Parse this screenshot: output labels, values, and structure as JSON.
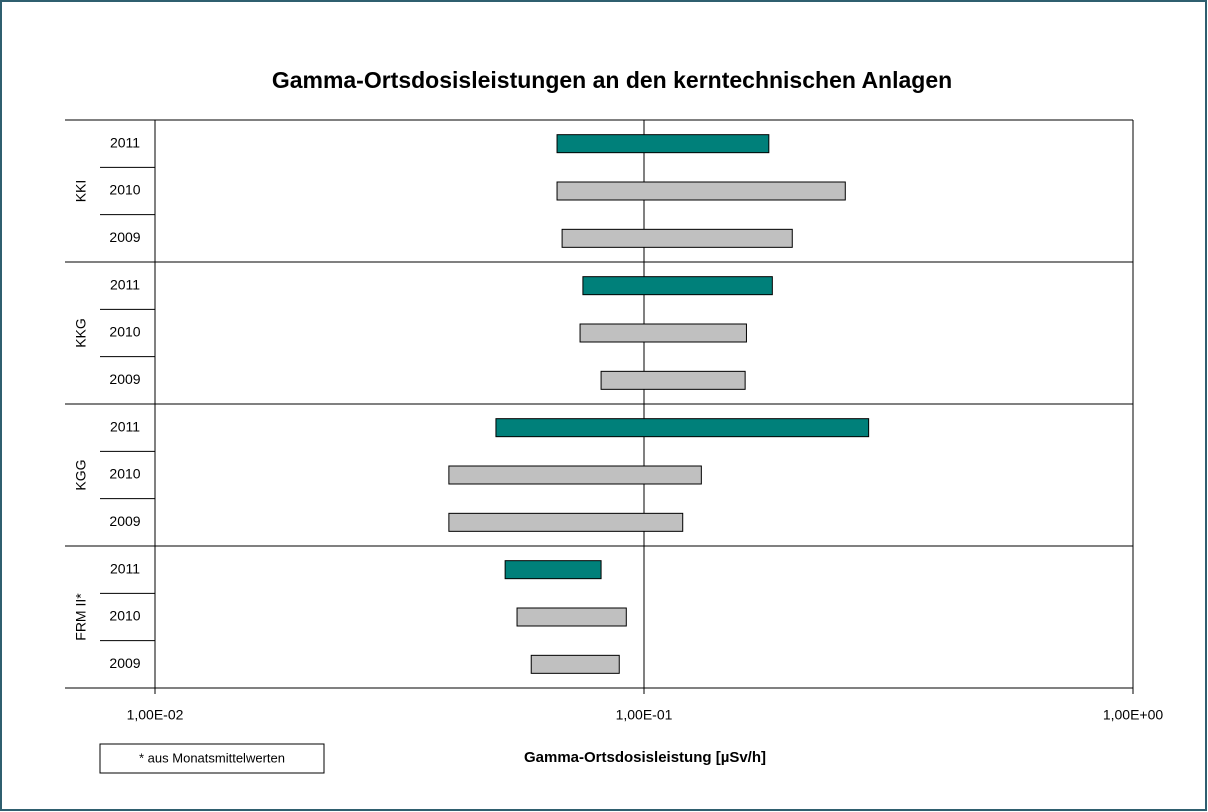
{
  "chart_data": {
    "type": "floating-bar",
    "title": "Gamma-Ortsdosisleistungen an den kerntechnischen Anlagen",
    "x_label": "Gamma-Ortsdosisleistung [µSv/h]",
    "note": "* aus Monatsmittelwerten",
    "log_x": true,
    "xlim": [
      0.01,
      1
    ],
    "xticks": [
      {
        "value": 0.01,
        "label": "1,00E-02"
      },
      {
        "value": 0.1,
        "label": "1,00E-01"
      },
      {
        "value": 1,
        "label": "1,00E+00"
      }
    ],
    "grid": true,
    "groups": [
      {
        "name": "KKI",
        "items": [
          {
            "label": "2011",
            "color": "#00807a",
            "values": [
              0.0664,
              0.18
            ]
          },
          {
            "label": "2010",
            "color": "#c0c0c0",
            "values": [
              0.0664,
              0.258
            ]
          },
          {
            "label": "2009",
            "color": "#c0c0c0",
            "values": [
              0.068,
              0.201
            ]
          }
        ]
      },
      {
        "name": "KKG",
        "items": [
          {
            "label": "2011",
            "color": "#00807a",
            "values": [
              0.075,
              0.183
            ]
          },
          {
            "label": "2010",
            "color": "#c0c0c0",
            "values": [
              0.074,
              0.162
            ]
          },
          {
            "label": "2009",
            "color": "#c0c0c0",
            "values": [
              0.0817,
              0.161
            ]
          }
        ]
      },
      {
        "name": "KGG",
        "items": [
          {
            "label": "2011",
            "color": "#00807a",
            "values": [
              0.0498,
              0.288
            ]
          },
          {
            "label": "2010",
            "color": "#c0c0c0",
            "values": [
              0.0399,
              0.131
            ]
          },
          {
            "label": "2009",
            "color": "#c0c0c0",
            "values": [
              0.0399,
              0.12
            ]
          }
        ]
      },
      {
        "name": "FRM II*",
        "items": [
          {
            "label": "2011",
            "color": "#00807a",
            "values": [
              0.052,
              0.0817
            ]
          },
          {
            "label": "2010",
            "color": "#c0c0c0",
            "values": [
              0.055,
              0.092
            ]
          },
          {
            "label": "2009",
            "color": "#c0c0c0",
            "values": [
              0.0588,
              0.089
            ]
          }
        ]
      }
    ]
  }
}
